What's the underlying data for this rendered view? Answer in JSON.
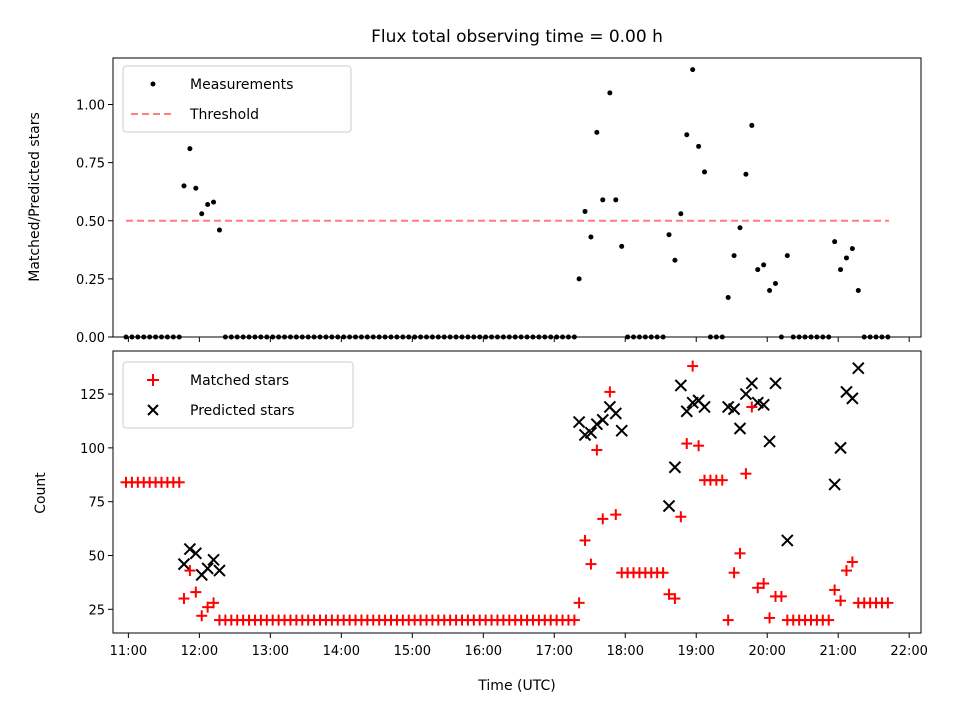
{
  "title": "Flux total observing time = 0.00 h",
  "xlabel": "Time (UTC)",
  "colors": {
    "threshold": "#ff7f7f",
    "matched": "#ff0000",
    "predicted": "#000000",
    "measurement": "#000000"
  },
  "chart_data": [
    {
      "type": "scatter",
      "name": "ratio-panel",
      "ylabel": "Matched/Predicted stars",
      "ylim": [
        0,
        1.2
      ],
      "yticks": [
        0.0,
        0.25,
        0.5,
        0.75,
        1.0
      ],
      "ytick_labels": [
        "0.00",
        "0.25",
        "0.50",
        "0.75",
        "1.00"
      ],
      "xlim": [
        "10:47",
        "22:10"
      ],
      "legend": {
        "placement": "upper-left",
        "entries": [
          "Measurements",
          "Threshold"
        ]
      },
      "threshold": {
        "value": 0.5,
        "x_start": "10:58",
        "x_end": "21:43"
      },
      "measurements": [
        [
          "10:58",
          0
        ],
        [
          "11:03",
          0
        ],
        [
          "11:08",
          0
        ],
        [
          "11:13",
          0
        ],
        [
          "11:18",
          0
        ],
        [
          "11:23",
          0
        ],
        [
          "11:28",
          0
        ],
        [
          "11:33",
          0
        ],
        [
          "11:38",
          0
        ],
        [
          "11:43",
          0
        ],
        [
          "11:47",
          0.65
        ],
        [
          "11:52",
          0.81
        ],
        [
          "11:57",
          0.64
        ],
        [
          "12:02",
          0.53
        ],
        [
          "12:07",
          0.57
        ],
        [
          "12:12",
          0.58
        ],
        [
          "12:17",
          0.46
        ],
        [
          "12:22",
          0
        ],
        [
          "12:27",
          0
        ],
        [
          "12:32",
          0
        ],
        [
          "12:37",
          0
        ],
        [
          "12:42",
          0
        ],
        [
          "12:47",
          0
        ],
        [
          "12:52",
          0
        ],
        [
          "12:57",
          0
        ],
        [
          "13:02",
          0
        ],
        [
          "13:07",
          0
        ],
        [
          "13:12",
          0
        ],
        [
          "13:17",
          0
        ],
        [
          "13:22",
          0
        ],
        [
          "13:27",
          0
        ],
        [
          "13:32",
          0
        ],
        [
          "13:37",
          0
        ],
        [
          "13:42",
          0
        ],
        [
          "13:47",
          0
        ],
        [
          "13:52",
          0
        ],
        [
          "13:57",
          0
        ],
        [
          "14:02",
          0
        ],
        [
          "14:07",
          0
        ],
        [
          "14:12",
          0
        ],
        [
          "14:17",
          0
        ],
        [
          "14:22",
          0
        ],
        [
          "14:27",
          0
        ],
        [
          "14:32",
          0
        ],
        [
          "14:37",
          0
        ],
        [
          "14:42",
          0
        ],
        [
          "14:47",
          0
        ],
        [
          "14:52",
          0
        ],
        [
          "14:57",
          0
        ],
        [
          "15:02",
          0
        ],
        [
          "15:07",
          0
        ],
        [
          "15:12",
          0
        ],
        [
          "15:17",
          0
        ],
        [
          "15:22",
          0
        ],
        [
          "15:27",
          0
        ],
        [
          "15:32",
          0
        ],
        [
          "15:37",
          0
        ],
        [
          "15:42",
          0
        ],
        [
          "15:47",
          0
        ],
        [
          "15:52",
          0
        ],
        [
          "15:57",
          0
        ],
        [
          "16:02",
          0
        ],
        [
          "16:07",
          0
        ],
        [
          "16:12",
          0
        ],
        [
          "16:17",
          0
        ],
        [
          "16:22",
          0
        ],
        [
          "16:27",
          0
        ],
        [
          "16:32",
          0
        ],
        [
          "16:37",
          0
        ],
        [
          "16:42",
          0
        ],
        [
          "16:47",
          0
        ],
        [
          "16:52",
          0
        ],
        [
          "16:57",
          0
        ],
        [
          "17:02",
          0
        ],
        [
          "17:07",
          0
        ],
        [
          "17:12",
          0
        ],
        [
          "17:17",
          0
        ],
        [
          "17:21",
          0.25
        ],
        [
          "17:26",
          0.54
        ],
        [
          "17:31",
          0.43
        ],
        [
          "17:36",
          0.88
        ],
        [
          "17:41",
          0.59
        ],
        [
          "17:47",
          1.05
        ],
        [
          "17:52",
          0.59
        ],
        [
          "17:57",
          0.39
        ],
        [
          "18:02",
          0
        ],
        [
          "18:07",
          0
        ],
        [
          "18:12",
          0
        ],
        [
          "18:17",
          0
        ],
        [
          "18:22",
          0
        ],
        [
          "18:27",
          0
        ],
        [
          "18:32",
          0
        ],
        [
          "18:37",
          0.44
        ],
        [
          "18:42",
          0.33
        ],
        [
          "18:47",
          0.53
        ],
        [
          "18:52",
          0.87
        ],
        [
          "18:57",
          1.15
        ],
        [
          "19:02",
          0.82
        ],
        [
          "19:07",
          0.71
        ],
        [
          "19:12",
          0
        ],
        [
          "19:17",
          0
        ],
        [
          "19:22",
          0
        ],
        [
          "19:27",
          0.17
        ],
        [
          "19:32",
          0.35
        ],
        [
          "19:37",
          0.47
        ],
        [
          "19:42",
          0.7
        ],
        [
          "19:47",
          0.91
        ],
        [
          "19:52",
          0.29
        ],
        [
          "19:57",
          0.31
        ],
        [
          "20:02",
          0.2
        ],
        [
          "20:07",
          0.23
        ],
        [
          "20:12",
          0
        ],
        [
          "20:17",
          0.35
        ],
        [
          "20:22",
          0
        ],
        [
          "20:27",
          0
        ],
        [
          "20:32",
          0
        ],
        [
          "20:37",
          0
        ],
        [
          "20:42",
          0
        ],
        [
          "20:47",
          0
        ],
        [
          "20:52",
          0
        ],
        [
          "20:57",
          0.41
        ],
        [
          "21:02",
          0.29
        ],
        [
          "21:07",
          0.34
        ],
        [
          "21:12",
          0.38
        ],
        [
          "21:17",
          0.2
        ],
        [
          "21:22",
          0
        ],
        [
          "21:27",
          0
        ],
        [
          "21:32",
          0
        ],
        [
          "21:37",
          0
        ],
        [
          "21:42",
          0
        ]
      ]
    },
    {
      "type": "scatter",
      "name": "count-panel",
      "ylabel": "Count",
      "ylim": [
        14,
        145
      ],
      "yticks": [
        25,
        50,
        75,
        100,
        125
      ],
      "ytick_labels": [
        "25",
        "50",
        "75",
        "100",
        "125"
      ],
      "xlim": [
        "10:47",
        "22:10"
      ],
      "xticks": [
        "11:00",
        "12:00",
        "13:00",
        "14:00",
        "15:00",
        "16:00",
        "17:00",
        "18:00",
        "19:00",
        "20:00",
        "21:00",
        "22:00"
      ],
      "legend": {
        "placement": "upper-left",
        "entries": [
          "Matched stars",
          "Predicted stars"
        ]
      },
      "matched": [
        [
          "10:58",
          84
        ],
        [
          "11:03",
          84
        ],
        [
          "11:08",
          84
        ],
        [
          "11:13",
          84
        ],
        [
          "11:18",
          84
        ],
        [
          "11:23",
          84
        ],
        [
          "11:28",
          84
        ],
        [
          "11:33",
          84
        ],
        [
          "11:38",
          84
        ],
        [
          "11:43",
          84
        ],
        [
          "11:47",
          30
        ],
        [
          "11:52",
          43
        ],
        [
          "11:57",
          33
        ],
        [
          "12:02",
          22
        ],
        [
          "12:07",
          26
        ],
        [
          "12:12",
          28
        ],
        [
          "12:17",
          20
        ],
        [
          "12:22",
          20
        ],
        [
          "12:27",
          20
        ],
        [
          "12:32",
          20
        ],
        [
          "12:37",
          20
        ],
        [
          "12:42",
          20
        ],
        [
          "12:47",
          20
        ],
        [
          "12:52",
          20
        ],
        [
          "12:57",
          20
        ],
        [
          "13:02",
          20
        ],
        [
          "13:07",
          20
        ],
        [
          "13:12",
          20
        ],
        [
          "13:17",
          20
        ],
        [
          "13:22",
          20
        ],
        [
          "13:27",
          20
        ],
        [
          "13:32",
          20
        ],
        [
          "13:37",
          20
        ],
        [
          "13:42",
          20
        ],
        [
          "13:47",
          20
        ],
        [
          "13:52",
          20
        ],
        [
          "13:57",
          20
        ],
        [
          "14:02",
          20
        ],
        [
          "14:07",
          20
        ],
        [
          "14:12",
          20
        ],
        [
          "14:17",
          20
        ],
        [
          "14:22",
          20
        ],
        [
          "14:27",
          20
        ],
        [
          "14:32",
          20
        ],
        [
          "14:37",
          20
        ],
        [
          "14:42",
          20
        ],
        [
          "14:47",
          20
        ],
        [
          "14:52",
          20
        ],
        [
          "14:57",
          20
        ],
        [
          "15:02",
          20
        ],
        [
          "15:07",
          20
        ],
        [
          "15:12",
          20
        ],
        [
          "15:17",
          20
        ],
        [
          "15:22",
          20
        ],
        [
          "15:27",
          20
        ],
        [
          "15:32",
          20
        ],
        [
          "15:37",
          20
        ],
        [
          "15:42",
          20
        ],
        [
          "15:47",
          20
        ],
        [
          "15:52",
          20
        ],
        [
          "15:57",
          20
        ],
        [
          "16:02",
          20
        ],
        [
          "16:07",
          20
        ],
        [
          "16:12",
          20
        ],
        [
          "16:17",
          20
        ],
        [
          "16:22",
          20
        ],
        [
          "16:27",
          20
        ],
        [
          "16:32",
          20
        ],
        [
          "16:37",
          20
        ],
        [
          "16:42",
          20
        ],
        [
          "16:47",
          20
        ],
        [
          "16:52",
          20
        ],
        [
          "16:57",
          20
        ],
        [
          "17:02",
          20
        ],
        [
          "17:07",
          20
        ],
        [
          "17:12",
          20
        ],
        [
          "17:17",
          20
        ],
        [
          "17:21",
          28
        ],
        [
          "17:26",
          57
        ],
        [
          "17:31",
          46
        ],
        [
          "17:36",
          99
        ],
        [
          "17:41",
          67
        ],
        [
          "17:47",
          126
        ],
        [
          "17:52",
          69
        ],
        [
          "17:57",
          42
        ],
        [
          "18:02",
          42
        ],
        [
          "18:07",
          42
        ],
        [
          "18:12",
          42
        ],
        [
          "18:17",
          42
        ],
        [
          "18:22",
          42
        ],
        [
          "18:27",
          42
        ],
        [
          "18:32",
          42
        ],
        [
          "18:37",
          32
        ],
        [
          "18:42",
          30
        ],
        [
          "18:47",
          68
        ],
        [
          "18:52",
          102
        ],
        [
          "18:57",
          138
        ],
        [
          "19:02",
          101
        ],
        [
          "19:07",
          85
        ],
        [
          "19:12",
          85
        ],
        [
          "19:17",
          85
        ],
        [
          "19:22",
          85
        ],
        [
          "19:27",
          20
        ],
        [
          "19:32",
          42
        ],
        [
          "19:37",
          51
        ],
        [
          "19:42",
          88
        ],
        [
          "19:47",
          119
        ],
        [
          "19:52",
          35
        ],
        [
          "19:57",
          37
        ],
        [
          "20:02",
          21
        ],
        [
          "20:07",
          31
        ],
        [
          "20:12",
          31
        ],
        [
          "20:17",
          20
        ],
        [
          "20:22",
          20
        ],
        [
          "20:27",
          20
        ],
        [
          "20:32",
          20
        ],
        [
          "20:37",
          20
        ],
        [
          "20:42",
          20
        ],
        [
          "20:47",
          20
        ],
        [
          "20:52",
          20
        ],
        [
          "20:57",
          34
        ],
        [
          "21:02",
          29
        ],
        [
          "21:07",
          43
        ],
        [
          "21:12",
          47
        ],
        [
          "21:17",
          28
        ],
        [
          "21:22",
          28
        ],
        [
          "21:27",
          28
        ],
        [
          "21:32",
          28
        ],
        [
          "21:37",
          28
        ],
        [
          "21:42",
          28
        ]
      ],
      "predicted": [
        [
          "11:47",
          46
        ],
        [
          "11:52",
          53
        ],
        [
          "11:57",
          51
        ],
        [
          "12:02",
          41
        ],
        [
          "12:07",
          44
        ],
        [
          "12:12",
          48
        ],
        [
          "12:17",
          43
        ],
        [
          "17:21",
          112
        ],
        [
          "17:26",
          106
        ],
        [
          "17:31",
          107
        ],
        [
          "17:36",
          111
        ],
        [
          "17:41",
          113
        ],
        [
          "17:47",
          119
        ],
        [
          "17:52",
          116
        ],
        [
          "17:57",
          108
        ],
        [
          "18:37",
          73
        ],
        [
          "18:42",
          91
        ],
        [
          "18:47",
          129
        ],
        [
          "18:52",
          117
        ],
        [
          "18:57",
          121
        ],
        [
          "19:02",
          122
        ],
        [
          "19:07",
          119
        ],
        [
          "19:27",
          119
        ],
        [
          "19:32",
          118
        ],
        [
          "19:37",
          109
        ],
        [
          "19:42",
          125
        ],
        [
          "19:47",
          130
        ],
        [
          "19:52",
          121
        ],
        [
          "19:57",
          120
        ],
        [
          "20:02",
          103
        ],
        [
          "20:07",
          130
        ],
        [
          "20:17",
          57
        ],
        [
          "20:57",
          83
        ],
        [
          "21:02",
          100
        ],
        [
          "21:07",
          126
        ],
        [
          "21:12",
          123
        ],
        [
          "21:17",
          137
        ]
      ]
    }
  ]
}
